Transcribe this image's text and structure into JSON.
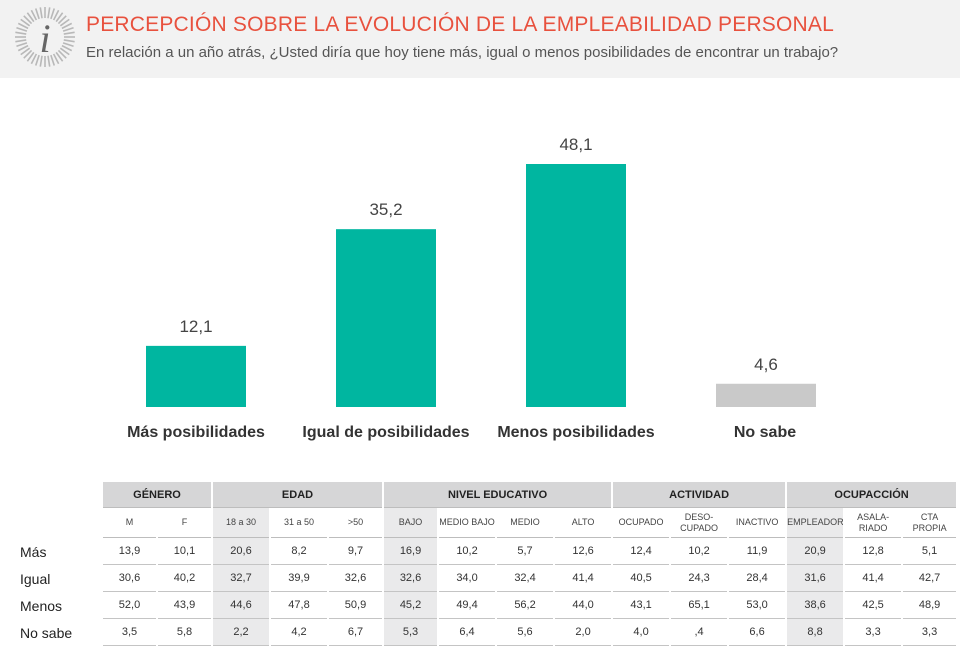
{
  "header": {
    "title": "PERCEPCIÓN SOBRE LA EVOLUCIÓN DE LA EMPLEABILIDAD PERSONAL",
    "subtitle": "En relación a un año atrás, ¿Usted diría que hoy tiene más, igual o menos posibilidades de encontrar un trabajo?",
    "logo_icon": "info-i-icon"
  },
  "chart_data": {
    "type": "bar",
    "categories": [
      "Más posibilidades",
      "Igual de posibilidades",
      "Menos posibilidades",
      "No sabe"
    ],
    "values": [
      12.1,
      35.2,
      48.1,
      4.6
    ],
    "value_labels": [
      "12,1",
      "35,2",
      "48,1",
      "4,6"
    ],
    "colors": [
      "#00b6a0",
      "#00b6a0",
      "#00b6a0",
      "#c9c9c9"
    ],
    "ylim": [
      0,
      50
    ],
    "grid": false,
    "legend": "none"
  },
  "table": {
    "groups": [
      {
        "label": "GÉNERO",
        "span": 2
      },
      {
        "label": "EDAD",
        "span": 3
      },
      {
        "label": "NIVEL EDUCATIVO",
        "span": 4
      },
      {
        "label": "ACTIVIDAD",
        "span": 3
      },
      {
        "label": "OCUPACCIÓN",
        "span": 3
      }
    ],
    "columns": [
      {
        "label": "M"
      },
      {
        "label": "F"
      },
      {
        "label": "18 a 30"
      },
      {
        "label": "31 a 50"
      },
      {
        "label": ">50"
      },
      {
        "label": "BAJO"
      },
      {
        "label": "MEDIO BAJO"
      },
      {
        "label": "MEDIO"
      },
      {
        "label": "ALTO"
      },
      {
        "label": "OCUPADO"
      },
      {
        "label": "DESO-\nCUPADO"
      },
      {
        "label": "INACTIVO"
      },
      {
        "label": "EMPLEADOR"
      },
      {
        "label": "ASALA-\nRIADO"
      },
      {
        "label": "CTA\nPROPIA"
      }
    ],
    "rows": [
      {
        "label": "Más",
        "values": [
          "13,9",
          "10,1",
          "20,6",
          "8,2",
          "9,7",
          "16,9",
          "10,2",
          "5,7",
          "12,6",
          "12,4",
          "10,2",
          "11,9",
          "20,9",
          "12,8",
          "5,1"
        ]
      },
      {
        "label": "Igual",
        "values": [
          "30,6",
          "40,2",
          "32,7",
          "39,9",
          "32,6",
          "32,6",
          "34,0",
          "32,4",
          "41,4",
          "40,5",
          "24,3",
          "28,4",
          "31,6",
          "41,4",
          "42,7"
        ]
      },
      {
        "label": "Menos",
        "values": [
          "52,0",
          "43,9",
          "44,6",
          "47,8",
          "50,9",
          "45,2",
          "49,4",
          "56,2",
          "44,0",
          "43,1",
          "65,1",
          "53,0",
          "38,6",
          "42,5",
          "48,9"
        ]
      },
      {
        "label": "No sabe",
        "values": [
          "3,5",
          "5,8",
          "2,2",
          "4,2",
          "6,7",
          "5,3",
          "6,4",
          "5,6",
          "2,0",
          "4,0",
          ",4",
          "6,6",
          "8,8",
          "3,3",
          "3,3"
        ]
      }
    ]
  }
}
